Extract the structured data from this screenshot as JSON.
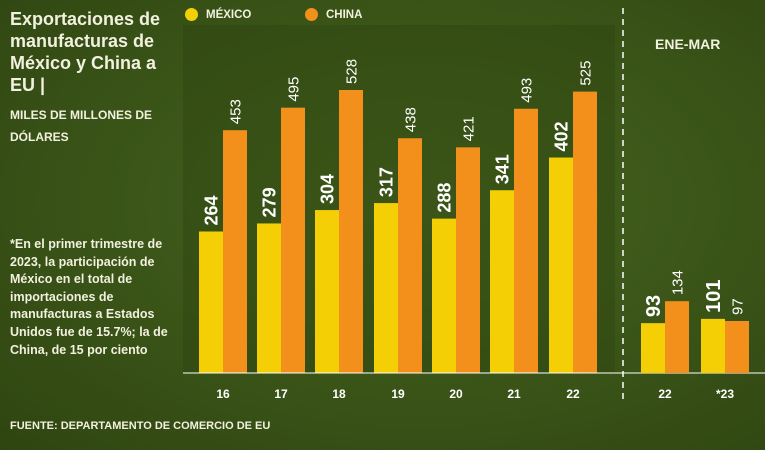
{
  "chart_data": {
    "type": "bar",
    "title": "Exportaciones de manufacturas de México y China a EU |",
    "subtitle": "MILES DE MILLONES DE DÓLARES",
    "note": "*En el primer trimestre de 2023, la participación de México en el total de importaciones de manufacturas a Estados Unidos fue de 15.7%; la de China, de 15 por ciento",
    "source": "FUENTE: DEPARTAMENTO DE COMERCIO DE EU",
    "legend_position": "top",
    "grid": false,
    "colors": {
      "mexico": "#f4cf05",
      "china": "#f3901c",
      "background": "#3c5719"
    },
    "annual": {
      "categories": [
        "16",
        "17",
        "18",
        "19",
        "20",
        "21",
        "22"
      ],
      "series": [
        {
          "name": "MÉXICO",
          "values": [
            264,
            279,
            304,
            317,
            288,
            341,
            402
          ]
        },
        {
          "name": "CHINA",
          "values": [
            453,
            495,
            528,
            438,
            421,
            493,
            525
          ]
        }
      ],
      "ylim": [
        0,
        560
      ]
    },
    "quarterly": {
      "label": "ENE-MAR",
      "categories": [
        "22",
        "*23"
      ],
      "series": [
        {
          "name": "MÉXICO",
          "values": [
            93,
            101
          ]
        },
        {
          "name": "CHINA",
          "values": [
            134,
            97
          ]
        }
      ],
      "ylim": [
        0,
        560
      ]
    }
  }
}
